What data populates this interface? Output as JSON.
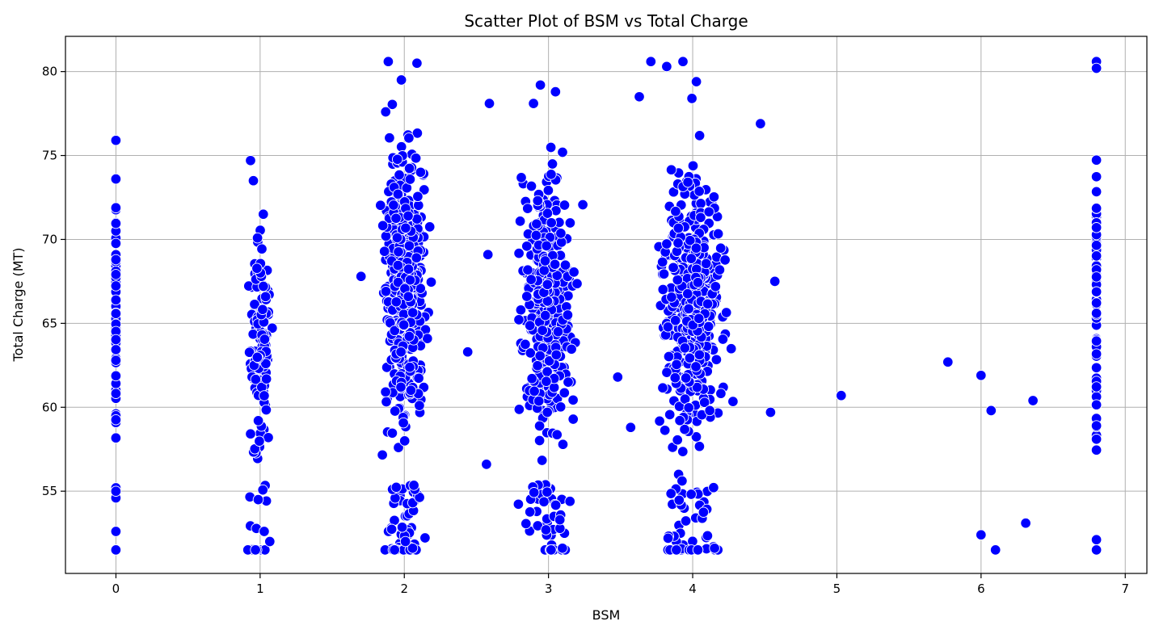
{
  "chart_data": {
    "type": "scatter",
    "title": "Scatter Plot of BSM vs Total Charge",
    "xlabel": "BSM",
    "ylabel": "Total Charge (MT)",
    "xlim": [
      -0.35,
      7.15
    ],
    "ylim": [
      50.1,
      82.1
    ],
    "xticks": [
      0,
      1,
      2,
      3,
      4,
      5,
      6,
      7
    ],
    "yticks": [
      55,
      60,
      65,
      70,
      75,
      80
    ],
    "grid": true,
    "marker_color": "#0000ff",
    "marker_edge_color": "#ffffff",
    "groups": [
      {
        "x": 0.0,
        "jitter": 0.0,
        "y_min": 51.5,
        "y_max": 76.0,
        "count": 75,
        "extremes": [
          51.5,
          52.6,
          54.6,
          55.0,
          75.9,
          73.6
        ]
      },
      {
        "x": 1.0,
        "jitter": 0.12,
        "y_min": 51.5,
        "y_max": 75.0,
        "count": 140,
        "extremes": [
          51.5,
          52.0,
          52.6,
          74.7,
          73.5
        ]
      },
      {
        "x": 2.0,
        "jitter": 0.22,
        "y_min": 51.5,
        "y_max": 80.8,
        "count": 520,
        "extremes": [
          51.5,
          51.6,
          52.0,
          80.6,
          80.5,
          79.5,
          77.6
        ]
      },
      {
        "x": 3.0,
        "jitter": 0.3,
        "y_min": 51.5,
        "y_max": 79.5,
        "count": 420,
        "extremes": [
          51.5,
          51.6,
          52.7,
          79.2,
          78.8,
          78.1
        ]
      },
      {
        "x": 4.0,
        "jitter": 0.35,
        "y_min": 51.5,
        "y_max": 80.6,
        "count": 480,
        "extremes": [
          51.5,
          51.6,
          52.2,
          80.6,
          80.3,
          79.4,
          78.4
        ]
      },
      {
        "x": 6.8,
        "jitter": 0.0,
        "y_min": 51.5,
        "y_max": 80.8,
        "count": 90,
        "extremes": [
          51.5,
          58.1,
          58.9,
          80.6,
          80.2
        ]
      }
    ],
    "points": [
      {
        "x": 5.03,
        "y": 60.7
      },
      {
        "x": 5.77,
        "y": 62.7
      },
      {
        "x": 6.0,
        "y": 61.9
      },
      {
        "x": 6.0,
        "y": 52.4
      },
      {
        "x": 6.07,
        "y": 59.8
      },
      {
        "x": 6.1,
        "y": 51.5
      },
      {
        "x": 6.31,
        "y": 53.1
      },
      {
        "x": 6.36,
        "y": 60.4
      },
      {
        "x": 2.44,
        "y": 63.3
      },
      {
        "x": 2.57,
        "y": 56.6
      },
      {
        "x": 2.58,
        "y": 69.1
      },
      {
        "x": 2.59,
        "y": 78.1
      },
      {
        "x": 1.7,
        "y": 67.8
      },
      {
        "x": 4.47,
        "y": 76.9
      },
      {
        "x": 4.57,
        "y": 67.5
      },
      {
        "x": 4.54,
        "y": 59.7
      },
      {
        "x": 3.48,
        "y": 61.8
      },
      {
        "x": 3.57,
        "y": 58.8
      },
      {
        "x": 3.71,
        "y": 80.6
      },
      {
        "x": 3.63,
        "y": 78.5
      }
    ]
  }
}
